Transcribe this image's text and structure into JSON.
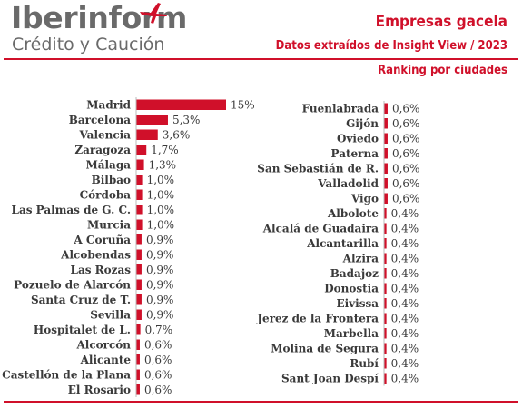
{
  "header": {
    "logo_name": "Iberinform",
    "logo_tagline": "Crédito y Caución",
    "title": "Empresas gacela",
    "subtitle": "Datos extraídos de Insight View / 2023",
    "ranking_label": "Ranking por ciudades"
  },
  "colors": {
    "accent": "#d0102a",
    "text": "#3a3a3a",
    "logo": "#6a6a6a"
  },
  "icons": {
    "logo_mark": "plane-icon"
  },
  "chart_data": {
    "type": "bar",
    "orientation": "horizontal",
    "title": "Empresas gacela",
    "subtitle": "Datos extraídos de Insight View / 2023",
    "value_format": "percent",
    "panels": [
      {
        "categories": [
          "Madrid",
          "Barcelona",
          "Valencia",
          "Zaragoza",
          "Málaga",
          "Bilbao",
          "Córdoba",
          "Las Palmas de G. C.",
          "Murcia",
          "A Coruña",
          "Alcobendas",
          "Las Rozas",
          "Pozuelo de Alarcón",
          "Santa Cruz de T.",
          "Sevilla",
          "Hospitalet de L.",
          "Alcorcón",
          "Alicante",
          "Castellón de la Plana",
          "El Rosario"
        ],
        "values": [
          15,
          5.3,
          3.6,
          1.7,
          1.3,
          1.0,
          1.0,
          1.0,
          1.0,
          0.9,
          0.9,
          0.9,
          0.9,
          0.9,
          0.9,
          0.7,
          0.6,
          0.6,
          0.6,
          0.6
        ],
        "labels": [
          "15%",
          "5,3%",
          "3,6%",
          "1,7%",
          "1,3%",
          "1,0%",
          "1,0%",
          "1,0%",
          "1,0%",
          "0,9%",
          "0,9%",
          "0,9%",
          "0,9%",
          "0,9%",
          "0,9%",
          "0,7%",
          "0,6%",
          "0,6%",
          "0,6%",
          "0,6%"
        ]
      },
      {
        "categories": [
          "Fuenlabrada",
          "Gijón",
          "Oviedo",
          "Paterna",
          "San Sebastián de R.",
          "Valladolid",
          "Vigo",
          "Albolote",
          "Alcalá de Guadaira",
          "Alcantarilla",
          "Alzira",
          "Badajoz",
          "Donostia",
          "Eivissa",
          "Jerez de la Frontera",
          "Marbella",
          "Molina de Segura",
          "Rubí",
          "Sant Joan Despí"
        ],
        "values": [
          0.6,
          0.6,
          0.6,
          0.6,
          0.6,
          0.6,
          0.6,
          0.4,
          0.4,
          0.4,
          0.4,
          0.4,
          0.4,
          0.4,
          0.4,
          0.4,
          0.4,
          0.4,
          0.4
        ],
        "labels": [
          "0,6%",
          "0,6%",
          "0,6%",
          "0,6%",
          "0,6%",
          "0,6%",
          "0,6%",
          "0,4%",
          "0,4%",
          "0,4%",
          "0,4%",
          "0,4%",
          "0,4%",
          "0,4%",
          "0,4%",
          "0,4%",
          "0,4%",
          "0,4%",
          "0,4%"
        ]
      }
    ]
  }
}
